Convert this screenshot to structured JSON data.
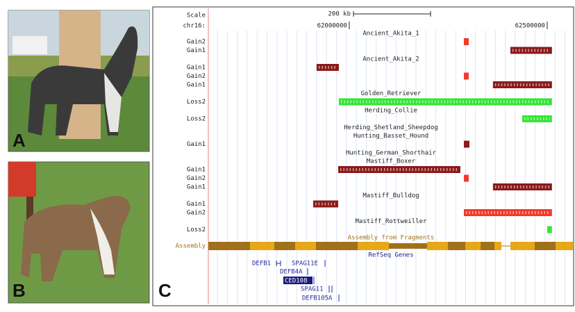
{
  "panels": {
    "a": "A",
    "b": "B",
    "c": "C"
  },
  "browser": {
    "scale_label": "Scale",
    "scale_size": "200 kb",
    "chrom": "chr16:",
    "xlim": [
      61644000,
      62565000
    ],
    "xticks": [
      62000000,
      62500000
    ],
    "tracks": [
      {
        "name": "Ancient_Akita_1",
        "rows": [
          {
            "label": "Gain2",
            "color": "#f03a2a",
            "start": 62289500,
            "end": 62301700
          },
          {
            "label": "Gain1",
            "color": "#8b1a1a",
            "start": 62407000,
            "end": 62512000
          }
        ]
      },
      {
        "name": "Ancient_Akita_2",
        "rows": [
          {
            "label": "Gain1",
            "color": "#8b1a1a",
            "start": 61917500,
            "end": 61973700
          },
          {
            "label": "Gain2",
            "color": "#f03a2a",
            "start": 62289500,
            "end": 62301700
          },
          {
            "label": "Gain1",
            "color": "#8b1a1a",
            "start": 62363000,
            "end": 62512000
          }
        ]
      },
      {
        "name": "Golden_Retriever",
        "rows": [
          {
            "label": "Loss2",
            "color": "#33e633",
            "start": 61973700,
            "end": 62512000
          }
        ]
      },
      {
        "name": "Herding_Collie",
        "rows": [
          {
            "label": "Loss2",
            "color": "#33e633",
            "start": 62437000,
            "end": 62512000
          }
        ]
      },
      {
        "name": "Herding_Shetland_Sheepdog",
        "rows": []
      },
      {
        "name": "Hunting_Basset_Hound",
        "rows": [
          {
            "label": "Gain1",
            "color": "#8b1a1a",
            "start": 62289500,
            "end": 62303500
          }
        ]
      },
      {
        "name": "Hunting_German_Shorthair",
        "rows": []
      },
      {
        "name": "Mastiff_Boxer",
        "rows": [
          {
            "label": "Gain1",
            "color": "#8b1a1a",
            "start": 61972000,
            "end": 62280700
          },
          {
            "label": "Gain2",
            "color": "#f03a2a",
            "start": 62289500,
            "end": 62301700
          },
          {
            "label": "Gain1",
            "color": "#8b1a1a",
            "start": 62363000,
            "end": 62512000
          }
        ]
      },
      {
        "name": "Mastiff_Bulldog",
        "rows": [
          {
            "label": "Gain1",
            "color": "#8b1a1a",
            "start": 61909000,
            "end": 61972000
          },
          {
            "label": "Gain2",
            "color": "#f03a2a",
            "start": 62289500,
            "end": 62512000
          }
        ]
      },
      {
        "name": "Mastiff_Rottweiller",
        "rows": [
          {
            "label": "Loss2",
            "color": "#33e633",
            "start": 62500000,
            "end": 62512000
          }
        ]
      }
    ],
    "assembly_label": "Assembly",
    "assembly_title": "Assembly from Fragments",
    "refseq_title": "RefSeq Genes",
    "genes": [
      "DEFB1",
      "SPAG11E",
      "DEFB4A",
      "CED108",
      "SPAG11",
      "DEFB105A"
    ]
  }
}
